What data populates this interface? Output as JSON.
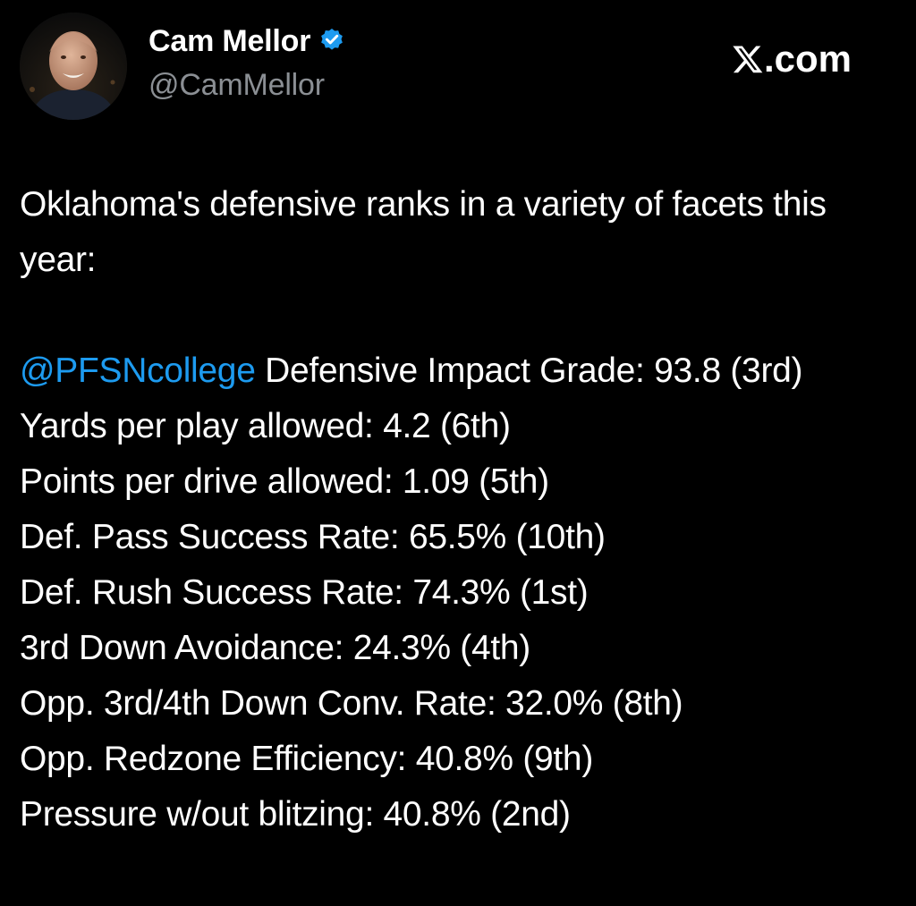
{
  "author": {
    "display_name": "Cam Mellor",
    "handle": "@CamMellor",
    "verified": true,
    "verified_icon": "verified-badge-icon",
    "verified_color": "#1d9bf0"
  },
  "source": {
    "logo_icon": "x-logo-icon",
    "logo_suffix": ".com"
  },
  "tweet": {
    "intro": "Oklahoma's defensive ranks in a variety of facets this year:",
    "mention": "@PFSNcollege",
    "mention_color": "#1d9bf0",
    "first_stat_text": " Defensive Impact Grade: 93.8 (3rd)",
    "stats": [
      "Yards per play allowed: 4.2 (6th)",
      "Points per drive allowed: 1.09 (5th)",
      "Def. Pass Success Rate: 65.5% (10th)",
      "Def. Rush Success Rate: 74.3% (1st)",
      "3rd Down Avoidance: 24.3% (4th)",
      "Opp. 3rd/4th Down Conv. Rate: 32.0% (8th)",
      "Opp. Redzone Efficiency: 40.8% (9th)",
      "Pressure w/out blitzing: 40.8% (2nd)"
    ]
  },
  "colors": {
    "background": "#000000",
    "text": "#ffffff",
    "handle": "#8b8f94",
    "accent": "#1d9bf0"
  }
}
